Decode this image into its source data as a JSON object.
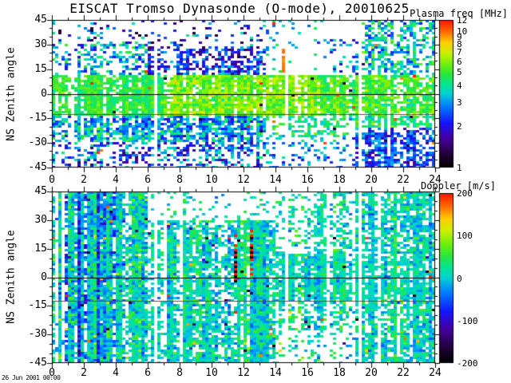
{
  "title": "EISCAT Tromso Dynasonde (O-mode),  20010625",
  "timestamp": "26 Jun 2001 00:00",
  "ylabel": "NS Zenith angle",
  "colors": {
    "background": "#ffffff",
    "axis": "#000000",
    "zero_line": "#000000",
    "red_line_top": "#b03000",
    "red_line_bottom": "#ee1100"
  },
  "chart_data": [
    {
      "type": "heatmap",
      "name": "plasma-frequency-panel",
      "colorbar_title": "Plasma freq [MHz]",
      "colorbar_scale": "log",
      "colorbar_range": [
        1,
        12
      ],
      "colorbar_ticks": [
        12,
        10,
        9,
        8,
        7,
        6,
        5,
        4,
        3,
        2,
        1
      ],
      "xlabel_ticks": [
        0,
        2,
        4,
        6,
        8,
        10,
        12,
        14,
        16,
        18,
        20,
        22,
        24
      ],
      "xlim": [
        0,
        24
      ],
      "x_minor_step": 1,
      "y_ticks": [
        45,
        30,
        15,
        0,
        -15,
        -30,
        -45
      ],
      "ylim": [
        -45,
        45
      ],
      "y_minor_step": 5,
      "ref_lines": [
        {
          "z": 0,
          "color": "#000000"
        },
        {
          "z": -12.5,
          "color": "#b03000"
        }
      ],
      "gap_hours": [
        6.5,
        14.65,
        19.35
      ],
      "anomaly_columns": [
        {
          "h": 14.4,
          "z": [
            13,
            27
          ],
          "value_mhz": 9.5
        }
      ],
      "regions": [
        {
          "h": [
            0,
            7
          ],
          "z": [
            -13,
            12
          ],
          "density": 0.96,
          "v_mhz": [
            4.0,
            5.8
          ]
        },
        {
          "h": [
            7,
            17
          ],
          "z": [
            -13,
            12
          ],
          "density": 0.98,
          "v_mhz": [
            4.5,
            7.2
          ]
        },
        {
          "h": [
            17,
            24
          ],
          "z": [
            -13,
            12
          ],
          "density": 0.96,
          "v_mhz": [
            4.0,
            6.5
          ]
        },
        {
          "h": [
            0,
            6
          ],
          "z": [
            12,
            32
          ],
          "density": 0.4,
          "v_mhz": [
            2.0,
            5.0
          ]
        },
        {
          "h": [
            6,
            13.5
          ],
          "z": [
            12,
            29
          ],
          "density": 0.55,
          "v_mhz": [
            1.4,
            3.2
          ]
        },
        {
          "h": [
            0,
            13.5
          ],
          "z": [
            29,
            45
          ],
          "density": 0.13,
          "v_mhz": [
            1.2,
            4.5
          ]
        },
        {
          "h": [
            13.5,
            17.5
          ],
          "z": [
            12,
            45
          ],
          "density": 0.07,
          "v_mhz": [
            2.5,
            4.5
          ]
        },
        {
          "h": [
            17.5,
            19.5
          ],
          "z": [
            12,
            33
          ],
          "density": 0.3,
          "v_mhz": [
            1.8,
            4.0
          ]
        },
        {
          "h": [
            19.5,
            24
          ],
          "z": [
            12,
            45
          ],
          "density": 0.6,
          "v_mhz": [
            2.2,
            5.5
          ]
        },
        {
          "h": [
            0,
            4
          ],
          "z": [
            -30,
            -13
          ],
          "density": 0.72,
          "v_mhz": [
            2.2,
            5.0
          ]
        },
        {
          "h": [
            4,
            13.5
          ],
          "z": [
            -30,
            -13
          ],
          "density": 0.75,
          "v_mhz": [
            2.0,
            4.8
          ]
        },
        {
          "h": [
            0,
            13.5
          ],
          "z": [
            -45,
            -30
          ],
          "density": 0.45,
          "v_mhz": [
            1.5,
            4.2
          ]
        },
        {
          "h": [
            13.5,
            19
          ],
          "z": [
            -27,
            -13
          ],
          "density": 0.5,
          "v_mhz": [
            3.2,
            5.5
          ]
        },
        {
          "h": [
            13.5,
            19
          ],
          "z": [
            -45,
            -27
          ],
          "density": 0.2,
          "v_mhz": [
            2.0,
            4.0
          ]
        },
        {
          "h": [
            19,
            24
          ],
          "z": [
            -20,
            -13
          ],
          "density": 0.8,
          "v_mhz": [
            3.2,
            5.5
          ]
        },
        {
          "h": [
            19,
            24
          ],
          "z": [
            -45,
            -20
          ],
          "density": 0.75,
          "v_mhz": [
            1.6,
            3.5
          ]
        }
      ]
    },
    {
      "type": "heatmap",
      "name": "doppler-panel",
      "colorbar_title": "Doppler [m/s]",
      "colorbar_scale": "linear",
      "colorbar_range": [
        -200,
        200
      ],
      "colorbar_ticks": [
        200,
        100,
        0,
        -100,
        -200
      ],
      "xlabel_ticks": [
        0,
        2,
        4,
        6,
        8,
        10,
        12,
        14,
        16,
        18,
        20,
        22,
        24
      ],
      "xlim": [
        0,
        24
      ],
      "x_minor_step": 1,
      "y_ticks": [
        45,
        30,
        15,
        0,
        -15,
        -30,
        -45
      ],
      "ylim": [
        -45,
        45
      ],
      "y_minor_step": 5,
      "ref_lines": [
        {
          "z": 0,
          "color": "#000000"
        },
        {
          "z": -12.5,
          "color": "#ee1100"
        }
      ],
      "gap_hours": [
        6.5,
        14.65,
        19.35
      ],
      "anomaly_columns": [
        {
          "h": 11.45,
          "z": [
            -2,
            22
          ],
          "pattern": "red-black"
        },
        {
          "h": 12.45,
          "z": [
            2,
            25
          ],
          "pattern": "red-black"
        }
      ],
      "regions": [
        {
          "h": [
            0,
            6
          ],
          "z": [
            -45,
            45
          ],
          "density": 0.86,
          "v_ms": [
            12,
            35
          ]
        },
        {
          "h": [
            6,
            14
          ],
          "z": [
            30,
            45
          ],
          "density": 0.15,
          "v_ms": [
            18,
            25
          ]
        },
        {
          "h": [
            6,
            14
          ],
          "z": [
            -45,
            30
          ],
          "density": 0.86,
          "v_ms": [
            12,
            28
          ]
        },
        {
          "h": [
            14,
            16.5
          ],
          "z": [
            12,
            45
          ],
          "density": 0.25,
          "v_ms": [
            15,
            25
          ]
        },
        {
          "h": [
            16.5,
            19
          ],
          "z": [
            12,
            45
          ],
          "density": 0.5,
          "v_ms": [
            10,
            25
          ]
        },
        {
          "h": [
            19,
            24
          ],
          "z": [
            12,
            45
          ],
          "density": 0.8,
          "v_ms": [
            8,
            28
          ]
        },
        {
          "h": [
            14,
            24
          ],
          "z": [
            -13,
            12
          ],
          "density": 0.92,
          "v_ms": [
            8,
            22
          ]
        },
        {
          "h": [
            14,
            19
          ],
          "z": [
            -28,
            -13
          ],
          "density": 0.55,
          "v_ms": [
            10,
            28
          ]
        },
        {
          "h": [
            14,
            19
          ],
          "z": [
            -45,
            -28
          ],
          "density": 0.25,
          "v_ms": [
            10,
            28
          ]
        },
        {
          "h": [
            19,
            24
          ],
          "z": [
            -45,
            -13
          ],
          "density": 0.8,
          "v_ms": [
            8,
            28
          ]
        }
      ]
    }
  ]
}
